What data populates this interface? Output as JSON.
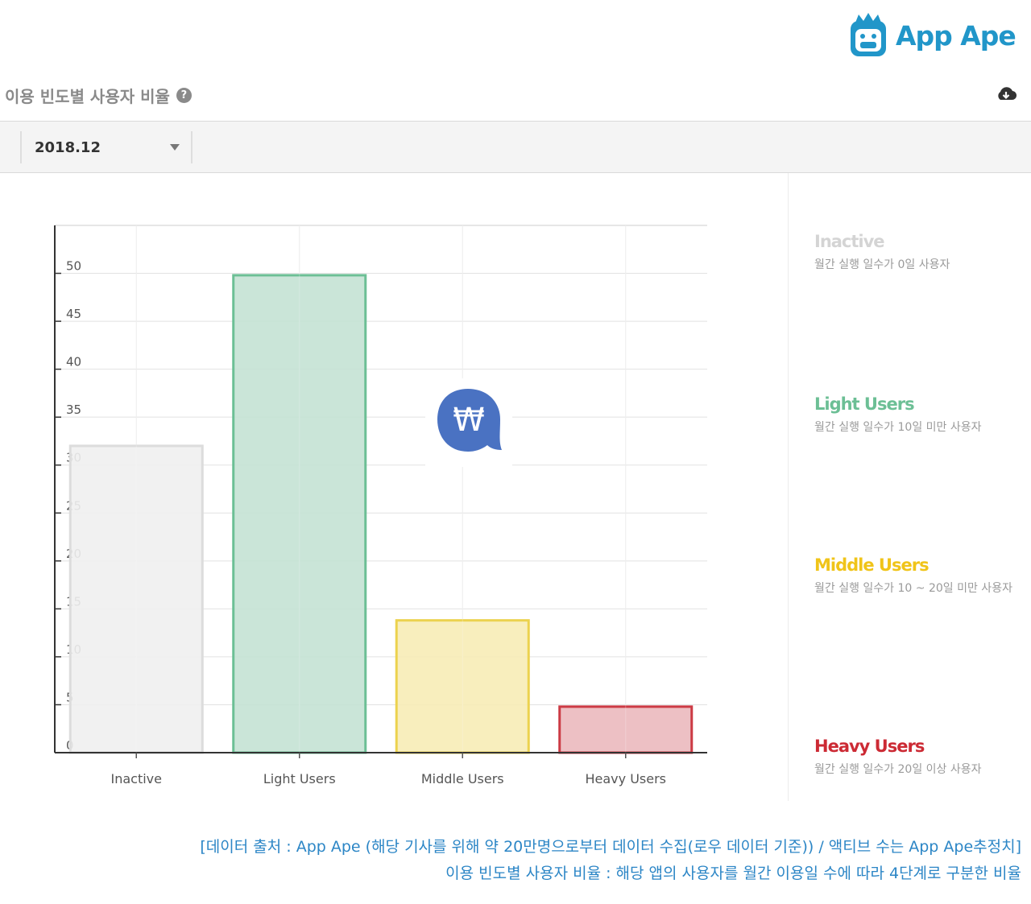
{
  "brand": {
    "name": "App Ape",
    "color": "#2196c9"
  },
  "widget": {
    "title": "이용 빈도별 사용자 비율",
    "help_icon": "?",
    "download_icon": "cloud-download-icon"
  },
  "filter": {
    "period": "2018.12"
  },
  "chart_data": {
    "type": "bar",
    "categories": [
      "Inactive",
      "Light Users",
      "Middle Users",
      "Heavy Users"
    ],
    "values": [
      32,
      49.8,
      13.8,
      4.8
    ],
    "colors": {
      "fill": [
        "#f0f0f0",
        "#c4e2d4",
        "#f7ecb6",
        "#ebb9be"
      ],
      "stroke": [
        "#dcdcdc",
        "#6cbf95",
        "#ecd24e",
        "#cc3a44"
      ]
    },
    "ylim": [
      0,
      55
    ],
    "yticks": [
      0,
      5,
      10,
      15,
      20,
      25,
      30,
      35,
      40,
      45,
      50
    ],
    "grid": true,
    "xlabel": "",
    "ylabel": ""
  },
  "legend": [
    {
      "name": "Inactive",
      "desc": "월간 실행 일수가 0일 사용자",
      "color": "#d4d4d4"
    },
    {
      "name": "Light Users",
      "desc": "월간 실행 일수가 10일 미만 사용자",
      "color": "#6cbf95"
    },
    {
      "name": "Middle Users",
      "desc": "월간 실행 일수가 10 ~ 20일 미만 사용자",
      "color": "#f0c419"
    },
    {
      "name": "Heavy Users",
      "desc": "월간 실행 일수가 20일 이상 사용자",
      "color": "#cc2a34"
    }
  ],
  "watermark": {
    "symbol": "₩",
    "color": "#4a72c2"
  },
  "footer": {
    "line1": "[데이터 출처 : App Ape (해당 기사를 위해 약 20만명으로부터 데이터 수집(로우 데이터 기준)) / 액티브 수는 App Ape추정치]",
    "line2": "이용 빈도별 사용자 비율 : 해당 앱의 사용자를 월간 이용일 수에 따라 4단계로 구분한 비율"
  }
}
